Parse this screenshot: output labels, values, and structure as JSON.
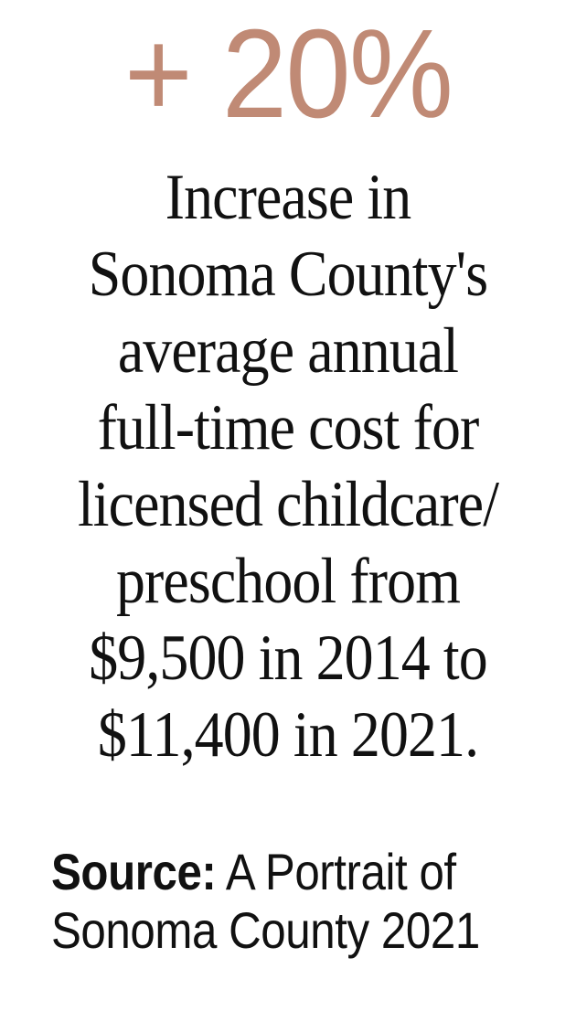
{
  "stat": {
    "value": "+ 20%",
    "color": "#c08a75"
  },
  "description": {
    "lines": [
      "Increase in",
      "Sonoma County's",
      "average annual",
      "full-time cost for",
      "licensed childcare/",
      "preschool from",
      "$9,500  in 2014 to",
      "$11,400 in 2021."
    ]
  },
  "source": {
    "label": "Source:",
    "line1_rest": " A Portrait of",
    "line2": "Sonoma County 2021"
  }
}
